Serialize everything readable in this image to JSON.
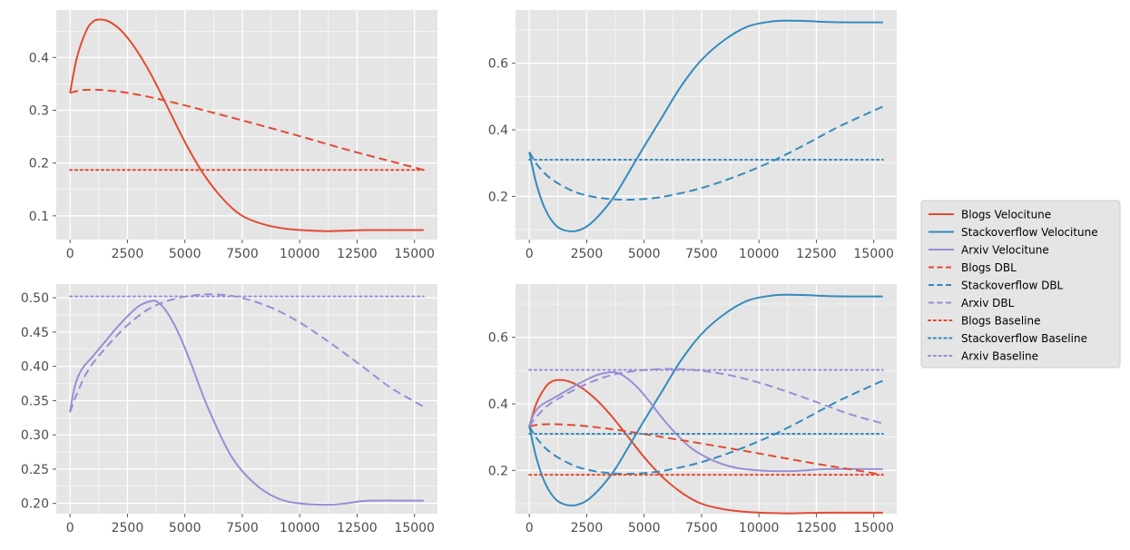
{
  "colors": {
    "blogs": "#E24A33",
    "stackoverflow": "#348ABD",
    "arxiv": "#988ED5",
    "panel_bg": "#E5E5E5",
    "grid": "#FFFFFF"
  },
  "legend": {
    "entries": [
      {
        "label": "Blogs Velocitune",
        "series": "blogs",
        "style": "solid"
      },
      {
        "label": "Stackoverflow Velocitune",
        "series": "stackoverflow",
        "style": "solid"
      },
      {
        "label": "Arxiv Velocitune",
        "series": "arxiv",
        "style": "solid"
      },
      {
        "label": "Blogs DBL",
        "series": "blogs",
        "style": "dashed"
      },
      {
        "label": "Stackoverflow DBL",
        "series": "stackoverflow",
        "style": "dashed"
      },
      {
        "label": "Arxiv DBL",
        "series": "arxiv",
        "style": "dashed"
      },
      {
        "label": "Blogs Baseline",
        "series": "blogs",
        "style": "dotted"
      },
      {
        "label": "Stackoverflow Baseline",
        "series": "stackoverflow",
        "style": "dotted"
      },
      {
        "label": "Arxiv Baseline",
        "series": "arxiv",
        "style": "dotted"
      }
    ]
  },
  "chart_data": [
    {
      "type": "line",
      "panel": "top-left",
      "title": "",
      "xlabel": "",
      "ylabel": "",
      "xlim": [
        -600,
        16000
      ],
      "ylim": [
        0.055,
        0.49
      ],
      "xticks": [
        0,
        2500,
        5000,
        7500,
        10000,
        12500,
        15000
      ],
      "xticklabels": [
        "0",
        "2500",
        "5000",
        "7500",
        "10000",
        "12500",
        "15000"
      ],
      "yticks": [
        0.1,
        0.2,
        0.3,
        0.4
      ],
      "yticklabels": [
        "0.1",
        "0.2",
        "0.3",
        "0.4"
      ],
      "series": [
        {
          "name": "Blogs Velocitune",
          "color_key": "blogs",
          "style": "solid",
          "x": [
            0,
            300,
            700,
            1000,
            1300,
            1700,
            2200,
            2800,
            3500,
            4200,
            5000,
            5800,
            6700,
            7500,
            8500,
            9500,
            10500,
            11200,
            12000,
            13000,
            14000,
            15400
          ],
          "y": [
            0.333,
            0.4,
            0.45,
            0.468,
            0.472,
            0.468,
            0.452,
            0.42,
            0.37,
            0.31,
            0.24,
            0.18,
            0.13,
            0.1,
            0.083,
            0.075,
            0.072,
            0.071,
            0.072,
            0.073,
            0.073,
            0.073
          ]
        },
        {
          "name": "Blogs DBL",
          "color_key": "blogs",
          "style": "dashed",
          "x": [
            0,
            500,
            1000,
            1500,
            2500,
            4000,
            6000,
            8000,
            10000,
            12000,
            14000,
            15400
          ],
          "y": [
            0.333,
            0.338,
            0.339,
            0.338,
            0.333,
            0.32,
            0.298,
            0.275,
            0.251,
            0.226,
            0.203,
            0.187
          ]
        },
        {
          "name": "Blogs Baseline",
          "color_key": "blogs",
          "style": "dotted",
          "x": [
            0,
            15400
          ],
          "y": [
            0.187,
            0.187
          ]
        }
      ]
    },
    {
      "type": "line",
      "panel": "top-right",
      "title": "",
      "xlabel": "",
      "ylabel": "",
      "xlim": [
        -600,
        16000
      ],
      "ylim": [
        0.07,
        0.76
      ],
      "xticks": [
        0,
        2500,
        5000,
        7500,
        10000,
        12500,
        15000
      ],
      "xticklabels": [
        "0",
        "2500",
        "5000",
        "7500",
        "10000",
        "12500",
        "15000"
      ],
      "yticks": [
        0.2,
        0.4,
        0.6
      ],
      "yticklabels": [
        "0.2",
        "0.4",
        "0.6"
      ],
      "series": [
        {
          "name": "Stackoverflow Velocitune",
          "color_key": "stackoverflow",
          "style": "solid",
          "x": [
            0,
            300,
            700,
            1200,
            1800,
            2400,
            3000,
            3700,
            4400,
            5000,
            5800,
            6600,
            7500,
            8500,
            9500,
            10500,
            11200,
            12000,
            13000,
            14000,
            15400
          ],
          "y": [
            0.333,
            0.24,
            0.16,
            0.11,
            0.095,
            0.105,
            0.14,
            0.2,
            0.28,
            0.35,
            0.44,
            0.53,
            0.61,
            0.67,
            0.71,
            0.725,
            0.728,
            0.727,
            0.724,
            0.723,
            0.723
          ]
        },
        {
          "name": "Stackoverflow DBL",
          "color_key": "stackoverflow",
          "style": "dashed",
          "x": [
            0,
            400,
            1000,
            2000,
            3000,
            4000,
            5000,
            6000,
            7500,
            9000,
            10500,
            12000,
            13500,
            15400
          ],
          "y": [
            0.333,
            0.29,
            0.25,
            0.213,
            0.196,
            0.19,
            0.192,
            0.201,
            0.225,
            0.26,
            0.303,
            0.355,
            0.41,
            0.47
          ]
        },
        {
          "name": "Stackoverflow Baseline",
          "color_key": "stackoverflow",
          "style": "dotted",
          "x": [
            0,
            15400
          ],
          "y": [
            0.31,
            0.31
          ]
        }
      ]
    },
    {
      "type": "line",
      "panel": "bottom-left",
      "title": "",
      "xlabel": "",
      "ylabel": "",
      "xlim": [
        -600,
        16000
      ],
      "ylim": [
        0.185,
        0.52
      ],
      "xticks": [
        0,
        2500,
        5000,
        7500,
        10000,
        12500,
        15000
      ],
      "xticklabels": [
        "0",
        "2500",
        "5000",
        "7500",
        "10000",
        "12500",
        "15000"
      ],
      "yticks": [
        0.2,
        0.25,
        0.3,
        0.35,
        0.4,
        0.45,
        0.5
      ],
      "yticklabels": [
        "0.20",
        "0.25",
        "0.30",
        "0.35",
        "0.40",
        "0.45",
        "0.50"
      ],
      "series": [
        {
          "name": "Arxiv Velocitune",
          "color_key": "arxiv",
          "style": "solid",
          "x": [
            0,
            200,
            500,
            1000,
            1500,
            2000,
            2500,
            3000,
            3500,
            3800,
            4200,
            4700,
            5200,
            6000,
            7000,
            8000,
            9000,
            10000,
            11200,
            12000,
            13000,
            15400
          ],
          "y": [
            0.333,
            0.37,
            0.395,
            0.415,
            0.435,
            0.455,
            0.473,
            0.488,
            0.495,
            0.494,
            0.48,
            0.45,
            0.41,
            0.34,
            0.27,
            0.23,
            0.208,
            0.2,
            0.198,
            0.2,
            0.204,
            0.204
          ]
        },
        {
          "name": "Arxiv DBL",
          "color_key": "arxiv",
          "style": "dashed",
          "x": [
            0,
            300,
            800,
            1500,
            2500,
            3500,
            4500,
            5500,
            6200,
            7000,
            8000,
            9000,
            10000,
            11000,
            12000,
            13000,
            14000,
            15400
          ],
          "y": [
            0.333,
            0.36,
            0.395,
            0.425,
            0.46,
            0.485,
            0.498,
            0.504,
            0.505,
            0.503,
            0.495,
            0.482,
            0.464,
            0.442,
            0.418,
            0.393,
            0.368,
            0.341
          ]
        },
        {
          "name": "Arxiv Baseline",
          "color_key": "arxiv",
          "style": "dotted",
          "x": [
            0,
            15400
          ],
          "y": [
            0.502,
            0.502
          ]
        }
      ]
    },
    {
      "type": "line",
      "panel": "bottom-right",
      "title": "",
      "xlabel": "",
      "ylabel": "",
      "xlim": [
        -600,
        16000
      ],
      "ylim": [
        0.07,
        0.76
      ],
      "xticks": [
        0,
        2500,
        5000,
        7500,
        10000,
        12500,
        15000
      ],
      "xticklabels": [
        "0",
        "2500",
        "5000",
        "7500",
        "10000",
        "12500",
        "15000"
      ],
      "yticks": [
        0.2,
        0.4,
        0.6
      ],
      "yticklabels": [
        "0.2",
        "0.4",
        "0.6"
      ],
      "series": [
        {
          "name": "Blogs Velocitune",
          "color_key": "blogs",
          "style": "solid",
          "x": [
            0,
            300,
            700,
            1000,
            1300,
            1700,
            2200,
            2800,
            3500,
            4200,
            5000,
            5800,
            6700,
            7500,
            8500,
            9500,
            10500,
            11200,
            12000,
            13000,
            14000,
            15400
          ],
          "y": [
            0.333,
            0.4,
            0.45,
            0.468,
            0.472,
            0.468,
            0.452,
            0.42,
            0.37,
            0.31,
            0.24,
            0.18,
            0.13,
            0.1,
            0.083,
            0.075,
            0.072,
            0.071,
            0.072,
            0.073,
            0.073,
            0.073
          ]
        },
        {
          "name": "Stackoverflow Velocitune",
          "color_key": "stackoverflow",
          "style": "solid",
          "x": [
            0,
            300,
            700,
            1200,
            1800,
            2400,
            3000,
            3700,
            4400,
            5000,
            5800,
            6600,
            7500,
            8500,
            9500,
            10500,
            11200,
            12000,
            13000,
            14000,
            15400
          ],
          "y": [
            0.333,
            0.24,
            0.16,
            0.11,
            0.095,
            0.105,
            0.14,
            0.2,
            0.28,
            0.35,
            0.44,
            0.53,
            0.61,
            0.67,
            0.71,
            0.725,
            0.728,
            0.727,
            0.724,
            0.723,
            0.723
          ]
        },
        {
          "name": "Arxiv Velocitune",
          "color_key": "arxiv",
          "style": "solid",
          "x": [
            0,
            200,
            500,
            1000,
            1500,
            2000,
            2500,
            3000,
            3500,
            3800,
            4200,
            4700,
            5200,
            6000,
            7000,
            8000,
            9000,
            10000,
            11200,
            12000,
            13000,
            15400
          ],
          "y": [
            0.333,
            0.37,
            0.395,
            0.415,
            0.435,
            0.455,
            0.473,
            0.488,
            0.495,
            0.494,
            0.48,
            0.45,
            0.41,
            0.34,
            0.27,
            0.23,
            0.208,
            0.2,
            0.198,
            0.2,
            0.204,
            0.204
          ]
        },
        {
          "name": "Blogs DBL",
          "color_key": "blogs",
          "style": "dashed",
          "x": [
            0,
            500,
            1000,
            1500,
            2500,
            4000,
            6000,
            8000,
            10000,
            12000,
            14000,
            15400
          ],
          "y": [
            0.333,
            0.338,
            0.339,
            0.338,
            0.333,
            0.32,
            0.298,
            0.275,
            0.251,
            0.226,
            0.203,
            0.187
          ]
        },
        {
          "name": "Stackoverflow DBL",
          "color_key": "stackoverflow",
          "style": "dashed",
          "x": [
            0,
            400,
            1000,
            2000,
            3000,
            4000,
            5000,
            6000,
            7500,
            9000,
            10500,
            12000,
            13500,
            15400
          ],
          "y": [
            0.333,
            0.29,
            0.25,
            0.213,
            0.196,
            0.19,
            0.192,
            0.201,
            0.225,
            0.26,
            0.303,
            0.355,
            0.41,
            0.47
          ]
        },
        {
          "name": "Arxiv DBL",
          "color_key": "arxiv",
          "style": "dashed",
          "x": [
            0,
            300,
            800,
            1500,
            2500,
            3500,
            4500,
            5500,
            6200,
            7000,
            8000,
            9000,
            10000,
            11000,
            12000,
            13000,
            14000,
            15400
          ],
          "y": [
            0.333,
            0.36,
            0.395,
            0.425,
            0.46,
            0.485,
            0.498,
            0.504,
            0.505,
            0.503,
            0.495,
            0.482,
            0.464,
            0.442,
            0.418,
            0.393,
            0.368,
            0.341
          ]
        },
        {
          "name": "Blogs Baseline",
          "color_key": "blogs",
          "style": "dotted",
          "x": [
            0,
            15400
          ],
          "y": [
            0.187,
            0.187
          ]
        },
        {
          "name": "Stackoverflow Baseline",
          "color_key": "stackoverflow",
          "style": "dotted",
          "x": [
            0,
            15400
          ],
          "y": [
            0.31,
            0.31
          ]
        },
        {
          "name": "Arxiv Baseline",
          "color_key": "arxiv",
          "style": "dotted",
          "x": [
            0,
            15400
          ],
          "y": [
            0.502,
            0.502
          ]
        }
      ]
    }
  ]
}
